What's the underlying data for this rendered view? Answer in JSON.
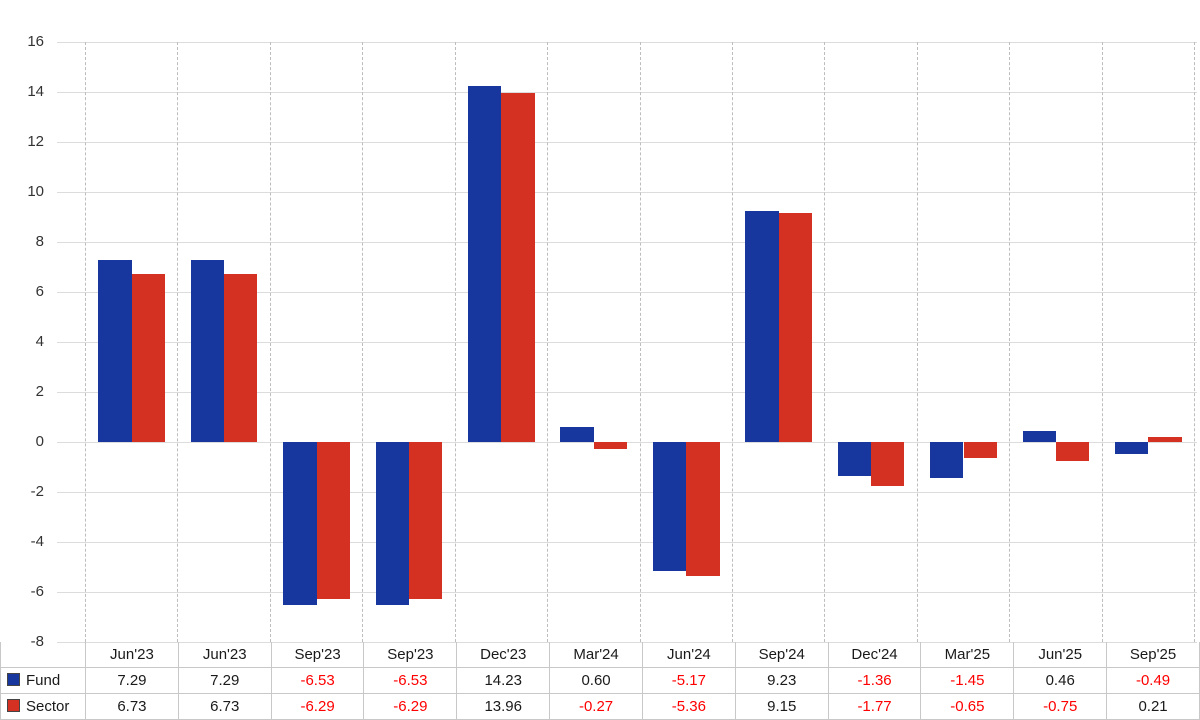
{
  "chart_data": {
    "type": "bar",
    "categories": [
      "Jun'23",
      "Jun'23",
      "Sep'23",
      "Sep'23",
      "Dec'23",
      "Mar'24",
      "Jun'24",
      "Sep'24",
      "Dec'24",
      "Mar'25",
      "Jun'25",
      "Sep'25"
    ],
    "series": [
      {
        "name": "Fund",
        "color": "#17379e",
        "values": [
          7.29,
          7.29,
          -6.53,
          -6.53,
          14.23,
          0.6,
          -5.17,
          9.23,
          -1.36,
          -1.45,
          0.46,
          -0.49
        ]
      },
      {
        "name": "Sector",
        "color": "#d43123",
        "values": [
          6.73,
          6.73,
          -6.29,
          -6.29,
          13.96,
          -0.27,
          -5.36,
          9.15,
          -1.77,
          -0.65,
          -0.75,
          0.21
        ]
      }
    ],
    "ylim": [
      -8,
      16
    ],
    "ytick_step": 2,
    "grid": true,
    "legend_position": "table-left",
    "title": "",
    "xlabel": "",
    "ylabel": ""
  },
  "styles": {
    "negative_text_color": "#ff0000",
    "positive_text_color": "#1a1a1a",
    "gridline_color": "#dcdcdc",
    "vertical_gridline_color": "#bdbdbd"
  },
  "value_format": {
    "decimals": 2
  }
}
